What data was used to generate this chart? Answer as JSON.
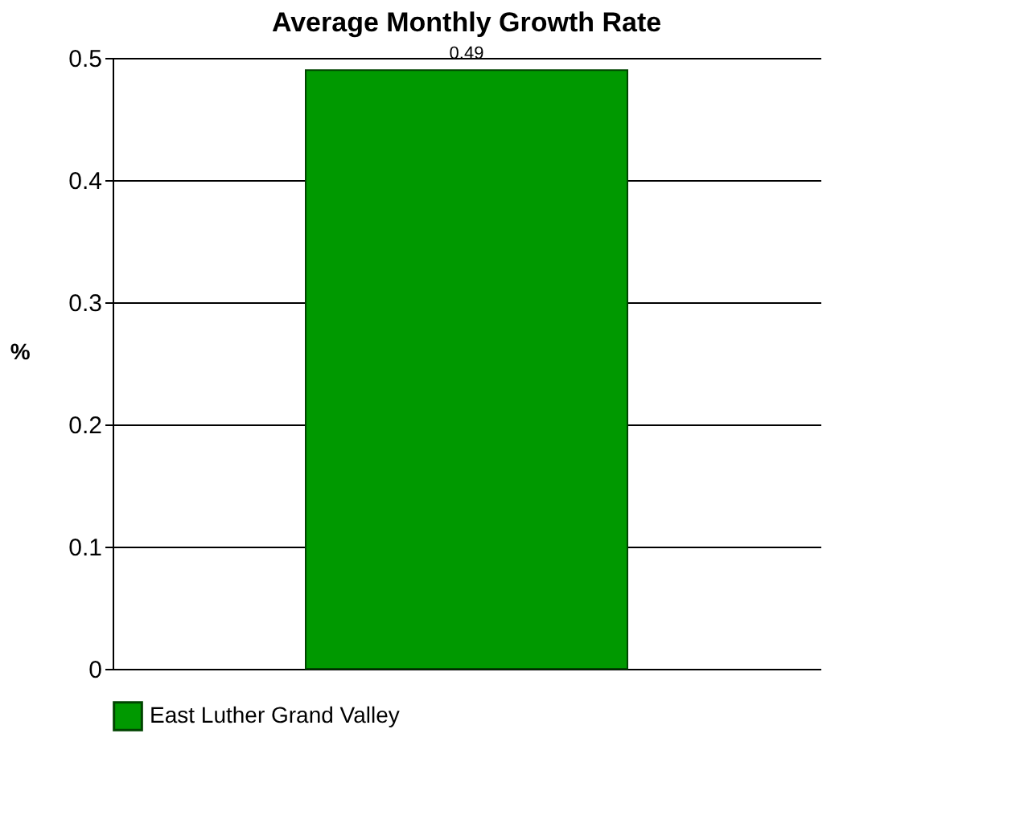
{
  "chart_data": {
    "type": "bar",
    "title": "Average Monthly Growth Rate",
    "ylabel": "%",
    "categories": [
      null
    ],
    "series": [
      {
        "name": "East Luther Grand Valley",
        "color": "#009900",
        "values": [
          0.49
        ]
      }
    ],
    "ylim": [
      0,
      0.5
    ],
    "yticks": [
      0,
      0.1,
      0.2,
      0.3,
      0.4,
      0.5
    ],
    "grid": "y",
    "legend": "bottom",
    "data_labels": true
  }
}
